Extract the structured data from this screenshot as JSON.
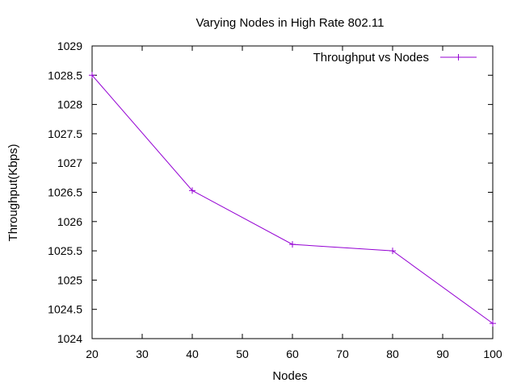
{
  "chart_data": {
    "type": "line",
    "title": "Varying Nodes in High Rate 802.11",
    "xlabel": "Nodes",
    "ylabel": "Throughput(Kbps)",
    "xlim": [
      20,
      100
    ],
    "ylim": [
      1024,
      1029
    ],
    "xticks": [
      20,
      30,
      40,
      50,
      60,
      70,
      80,
      90,
      100
    ],
    "xtick_labels": [
      "20",
      "30",
      "40",
      "50",
      "60",
      "70",
      "80",
      "90",
      "100"
    ],
    "yticks": [
      1024,
      1024.5,
      1025,
      1025.5,
      1026,
      1026.5,
      1027,
      1027.5,
      1028,
      1028.5,
      1029
    ],
    "ytick_labels": [
      "1024",
      "1024.5",
      "1025",
      "1025.5",
      "1026",
      "1026.5",
      "1027",
      "1027.5",
      "1028",
      "1028.5",
      "1029"
    ],
    "grid": false,
    "legend_position": "top-right",
    "series": [
      {
        "name": "Throughput vs Nodes",
        "color": "#9400D3",
        "marker": "plus",
        "x": [
          20,
          40,
          60,
          80,
          100
        ],
        "y": [
          1028.5,
          1026.53,
          1025.61,
          1025.5,
          1024.26
        ]
      }
    ]
  }
}
